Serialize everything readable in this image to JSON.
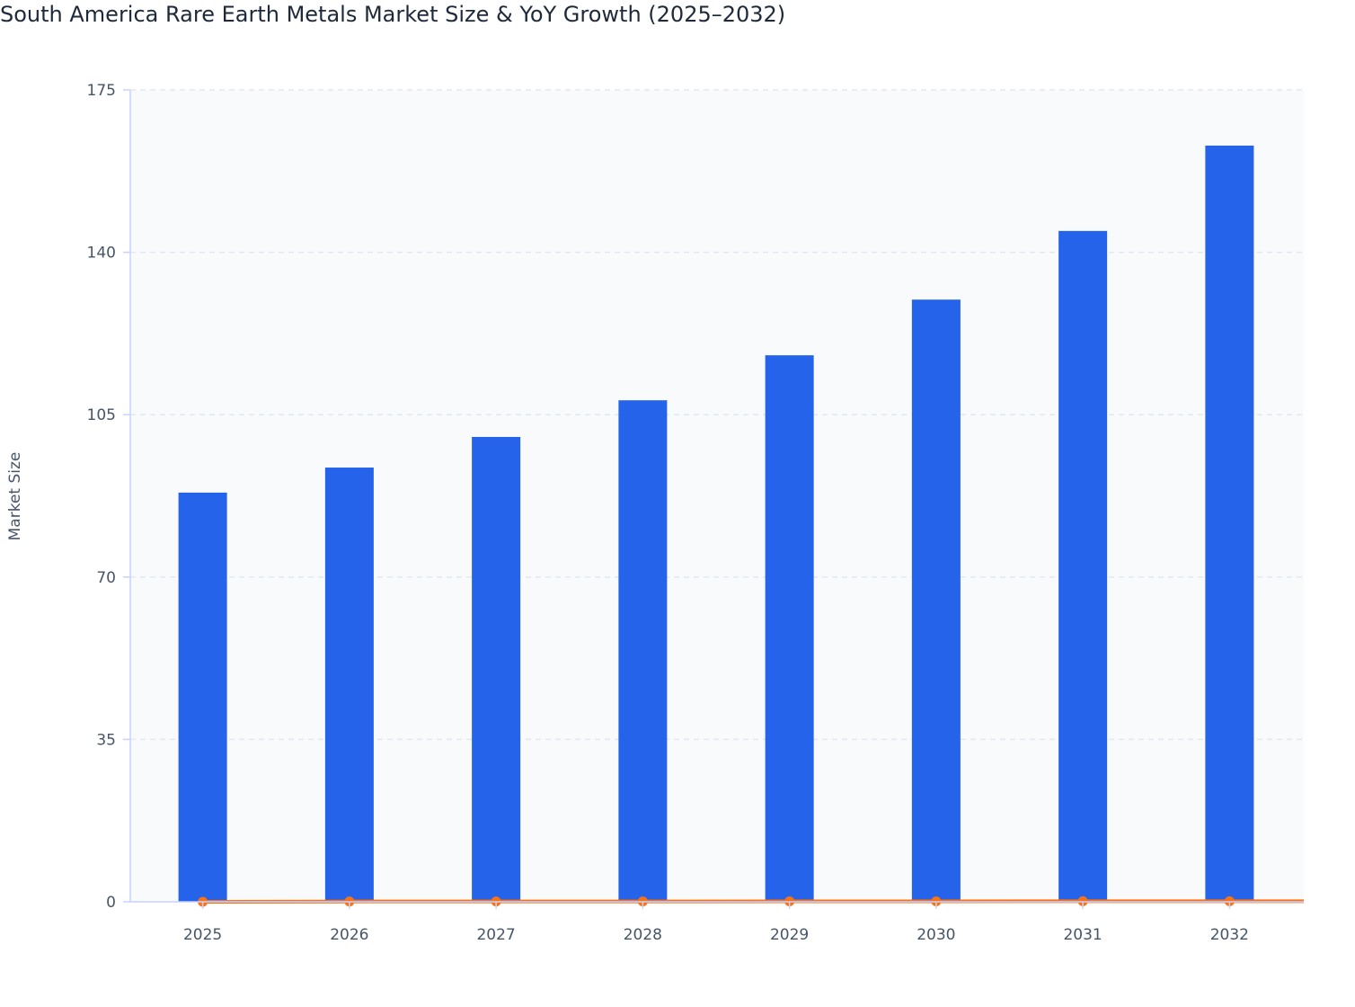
{
  "chart_data": {
    "type": "bar",
    "title": "South America Rare Earth Metals Market Size & YoY Growth (2025–2032)",
    "xlabel": "",
    "ylabel": "Market Size",
    "categories": [
      "2025",
      "2026",
      "2027",
      "2028",
      "2029",
      "2030",
      "2031",
      "2032"
    ],
    "series": [
      {
        "type": "bar",
        "values": [
          88.2,
          93.6,
          100.2,
          108.1,
          117.8,
          129.8,
          144.6,
          163.0
        ],
        "color": "#2563eb"
      },
      {
        "type": "line",
        "values": [
          0,
          0.061,
          0.071,
          0.079,
          0.09,
          0.102,
          0.114,
          0.127
        ],
        "color": "#f97316"
      }
    ],
    "ylim": [
      0,
      175
    ],
    "yticks": [
      0,
      35,
      70,
      105,
      140,
      175
    ],
    "grid": true,
    "legend": "none",
    "plot_background": "#f8fafc"
  }
}
